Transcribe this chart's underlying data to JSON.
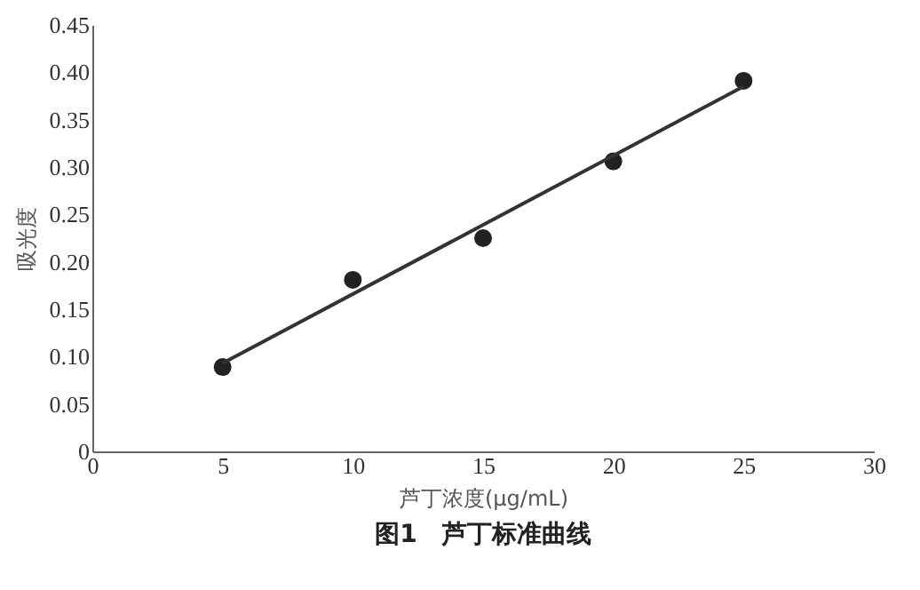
{
  "chart_data": {
    "type": "scatter",
    "title": "图1　芦丁标准曲线",
    "xlabel": "芦丁浓度(μg/mL)",
    "ylabel": "吸光度",
    "xlim": [
      0,
      30
    ],
    "ylim": [
      0,
      0.45
    ],
    "xticks": [
      0,
      5,
      10,
      15,
      20,
      25,
      30
    ],
    "yticks": [
      0,
      0.05,
      {
        "value": 0.1,
        "label": "0.10"
      },
      0.15,
      {
        "value": 0.2,
        "label": "0.20"
      },
      0.25,
      {
        "value": 0.3,
        "label": "0.30"
      },
      0.35,
      {
        "value": 0.4,
        "label": "0.40"
      },
      0.45
    ],
    "grid": false,
    "series": [
      {
        "color": "#222222",
        "marker": "circle",
        "x": [
          5,
          10,
          15,
          20,
          25
        ],
        "values": [
          0.089,
          0.181,
          0.225,
          0.306,
          0.391
        ]
      },
      {
        "type": "line",
        "color": "#333333",
        "x": [
          5,
          25
        ],
        "values": [
          0.093,
          0.385
        ]
      }
    ]
  }
}
